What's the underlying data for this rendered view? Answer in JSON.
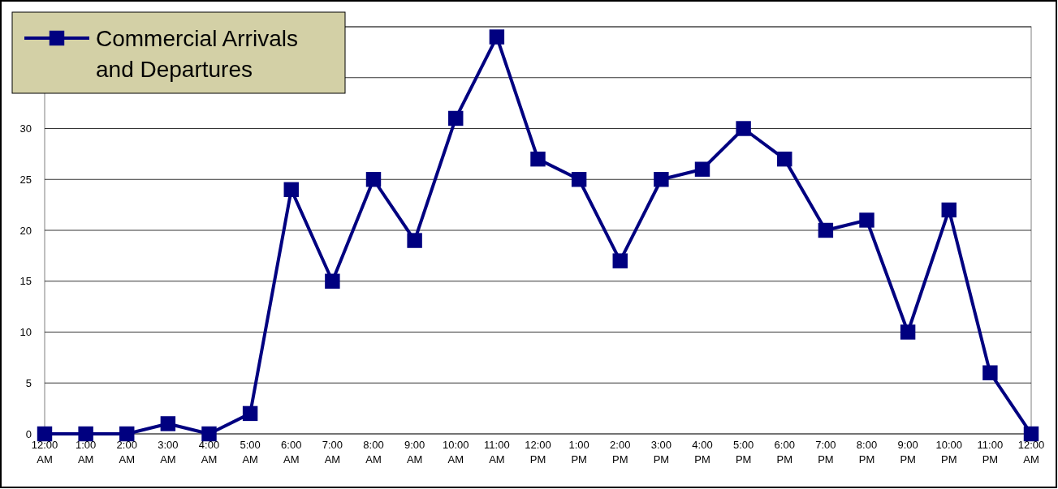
{
  "chart_data": {
    "type": "line",
    "categories": [
      "12:00 AM",
      "1:00 AM",
      "2:00 AM",
      "3:00 AM",
      "4:00 AM",
      "5:00 AM",
      "6:00 AM",
      "7:00 AM",
      "8:00 AM",
      "9:00 AM",
      "10:00 AM",
      "11:00 AM",
      "12:00 PM",
      "1:00 PM",
      "2:00 PM",
      "3:00 PM",
      "4:00 PM",
      "5:00 PM",
      "6:00 PM",
      "7:00 PM",
      "8:00 PM",
      "9:00 PM",
      "10:00 PM",
      "11:00 PM",
      "12:00 AM"
    ],
    "series": [
      {
        "name": "Commercial Arrivals and Departures",
        "color": "#000080",
        "values": [
          0,
          0,
          0,
          1,
          0,
          2,
          24,
          15,
          25,
          19,
          31,
          39,
          27,
          25,
          17,
          25,
          26,
          30,
          27,
          20,
          21,
          10,
          22,
          6,
          0
        ]
      }
    ],
    "ylim": [
      0,
      40
    ],
    "yticks": [
      0,
      5,
      10,
      15,
      20,
      25,
      30,
      {
        "value": 35,
        "label": null
      },
      {
        "value": 40,
        "label": null
      }
    ],
    "grid": "y",
    "legend": "top left",
    "marker": "square",
    "line_style": "solid"
  }
}
